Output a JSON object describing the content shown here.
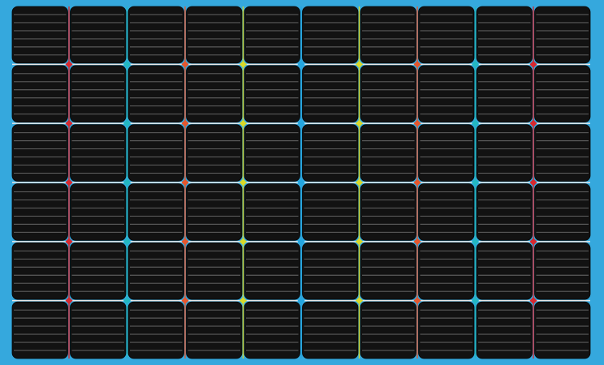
{
  "panel": {
    "rows": 6,
    "columns": 10,
    "busbars_per_cell_horizontal": 6,
    "colors": {
      "frame": "#35a8dd",
      "frame_edge": "#2c90c2",
      "cell": "#121212",
      "cell_edge": "#050505",
      "finger": "#8a8a8a",
      "horizontal_gap_line": "#e8e8e8"
    },
    "column_line_colors": [
      "#d7282f",
      "#22b8c2",
      "#e4572e",
      "#d7d92a",
      "#23a6e0",
      "#d7d92a",
      "#e4572e",
      "#22b8c2",
      "#d7282f"
    ]
  }
}
